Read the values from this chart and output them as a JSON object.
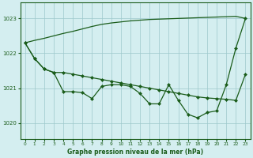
{
  "title": "Graphe pression niveau de la mer (hPa)",
  "bg_color": "#d4eef0",
  "grid_color": "#9dc8cc",
  "line_color": "#1a5c1a",
  "xlim": [
    -0.5,
    23.5
  ],
  "ylim": [
    1019.55,
    1023.45
  ],
  "yticks": [
    1020,
    1021,
    1022,
    1023
  ],
  "xticks": [
    0,
    1,
    2,
    3,
    4,
    5,
    6,
    7,
    8,
    9,
    10,
    11,
    12,
    13,
    14,
    15,
    16,
    17,
    18,
    19,
    20,
    21,
    22,
    23
  ],
  "x": [
    0,
    1,
    2,
    3,
    4,
    5,
    6,
    7,
    8,
    9,
    10,
    11,
    12,
    13,
    14,
    15,
    16,
    17,
    18,
    19,
    20,
    21,
    22,
    23
  ],
  "line_straight": [
    1022.3,
    1022.37,
    1022.43,
    1022.5,
    1022.57,
    1022.63,
    1022.7,
    1022.77,
    1022.83,
    1022.87,
    1022.9,
    1022.93,
    1022.95,
    1022.97,
    1022.98,
    1022.99,
    1023.0,
    1023.01,
    1023.02,
    1023.03,
    1023.04,
    1023.05,
    1023.06,
    1023.0
  ],
  "line_mid": [
    1022.3,
    1021.85,
    1021.55,
    1021.45,
    1021.45,
    1021.4,
    1021.35,
    1021.3,
    1021.25,
    1021.2,
    1021.15,
    1021.1,
    1021.05,
    1021.0,
    1020.95,
    1020.9,
    1020.85,
    1020.8,
    1020.75,
    1020.72,
    1020.7,
    1020.68,
    1020.65,
    1021.4
  ],
  "line_jagged": [
    1022.3,
    1021.85,
    1021.55,
    1021.45,
    1020.9,
    1020.9,
    1020.87,
    1020.7,
    1021.05,
    1021.1,
    1021.1,
    1021.05,
    1020.85,
    1020.55,
    1020.55,
    1021.1,
    1020.65,
    1020.25,
    1020.15,
    1020.3,
    1020.35,
    1021.1,
    1022.15,
    1023.0
  ],
  "lw": 0.9,
  "ms": 2.5
}
